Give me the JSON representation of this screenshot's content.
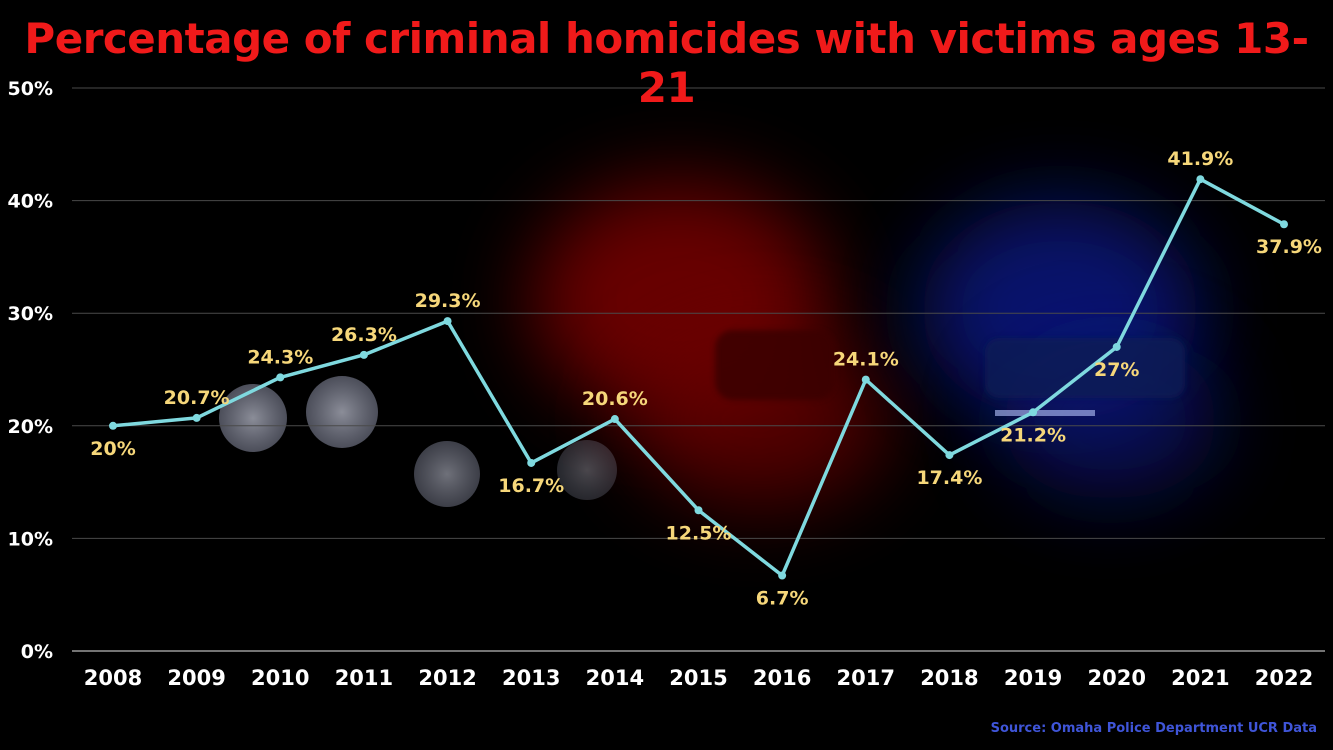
{
  "chart_data": {
    "type": "line",
    "title": "Percentage of criminal homicides with victims ages 13-21",
    "xlabel": "",
    "ylabel": "",
    "categories": [
      "2008",
      "2009",
      "2010",
      "2011",
      "2012",
      "2013",
      "2014",
      "2015",
      "2016",
      "2017",
      "2018",
      "2019",
      "2020",
      "2021",
      "2022"
    ],
    "series": [
      {
        "values": [
          20,
          20.7,
          24.3,
          26.3,
          29.3,
          16.7,
          20.6,
          12.5,
          6.7,
          24.1,
          17.4,
          21.2,
          27,
          41.9,
          37.9
        ],
        "labels": [
          "20%",
          "20.7%",
          "24.3%",
          "26.3%",
          "29.3%",
          "16.7%",
          "20.6%",
          "12.5%",
          "6.7%",
          "24.1%",
          "17.4%",
          "21.2%",
          "27%",
          "41.9%",
          "37.9%"
        ],
        "color": "#7fd9df"
      }
    ],
    "ylim": [
      0,
      50
    ],
    "yticks": [
      "0%",
      "10%",
      "20%",
      "30%",
      "40%",
      "50%"
    ],
    "grid": true,
    "source": "Source: Omaha Police Department UCR Data",
    "colors": {
      "title": "#f01a1a",
      "label": "#f6d77a",
      "line": "#7fd9df",
      "source": "#3f55d8"
    }
  }
}
